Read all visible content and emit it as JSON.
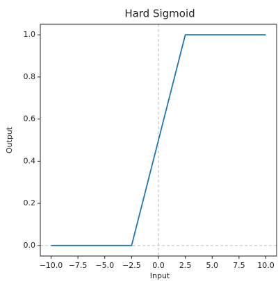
{
  "chart_data": {
    "type": "line",
    "title": "Hard Sigmoid",
    "xlabel": "Input",
    "ylabel": "Output",
    "x": [
      -10,
      -2.5,
      2.5,
      10
    ],
    "series": [
      {
        "name": "Hard Sigmoid",
        "color": "#1f77b4",
        "values": [
          0,
          0,
          1,
          1
        ]
      }
    ],
    "xlim": [
      -11,
      11
    ],
    "ylim": [
      -0.05,
      1.05
    ],
    "xticks": [
      {
        "value": -10,
        "label": "−10.0"
      },
      {
        "value": -7.5,
        "label": "−7.5"
      },
      {
        "value": -5,
        "label": "−5.0"
      },
      {
        "value": -2.5,
        "label": "−2.5"
      },
      {
        "value": 0,
        "label": "0.0"
      },
      {
        "value": 2.5,
        "label": "2.5"
      },
      {
        "value": 5,
        "label": "5.0"
      },
      {
        "value": 7.5,
        "label": "7.5"
      },
      {
        "value": 10,
        "label": "10.0"
      }
    ],
    "yticks": [
      {
        "value": 0,
        "label": "0.0"
      },
      {
        "value": 0.2,
        "label": "0.2"
      },
      {
        "value": 0.4,
        "label": "0.4"
      },
      {
        "value": 0.6,
        "label": "0.6"
      },
      {
        "value": 0.8,
        "label": "0.8"
      },
      {
        "value": 1,
        "label": "1.0"
      }
    ],
    "zero_lines": true,
    "grid": false
  }
}
